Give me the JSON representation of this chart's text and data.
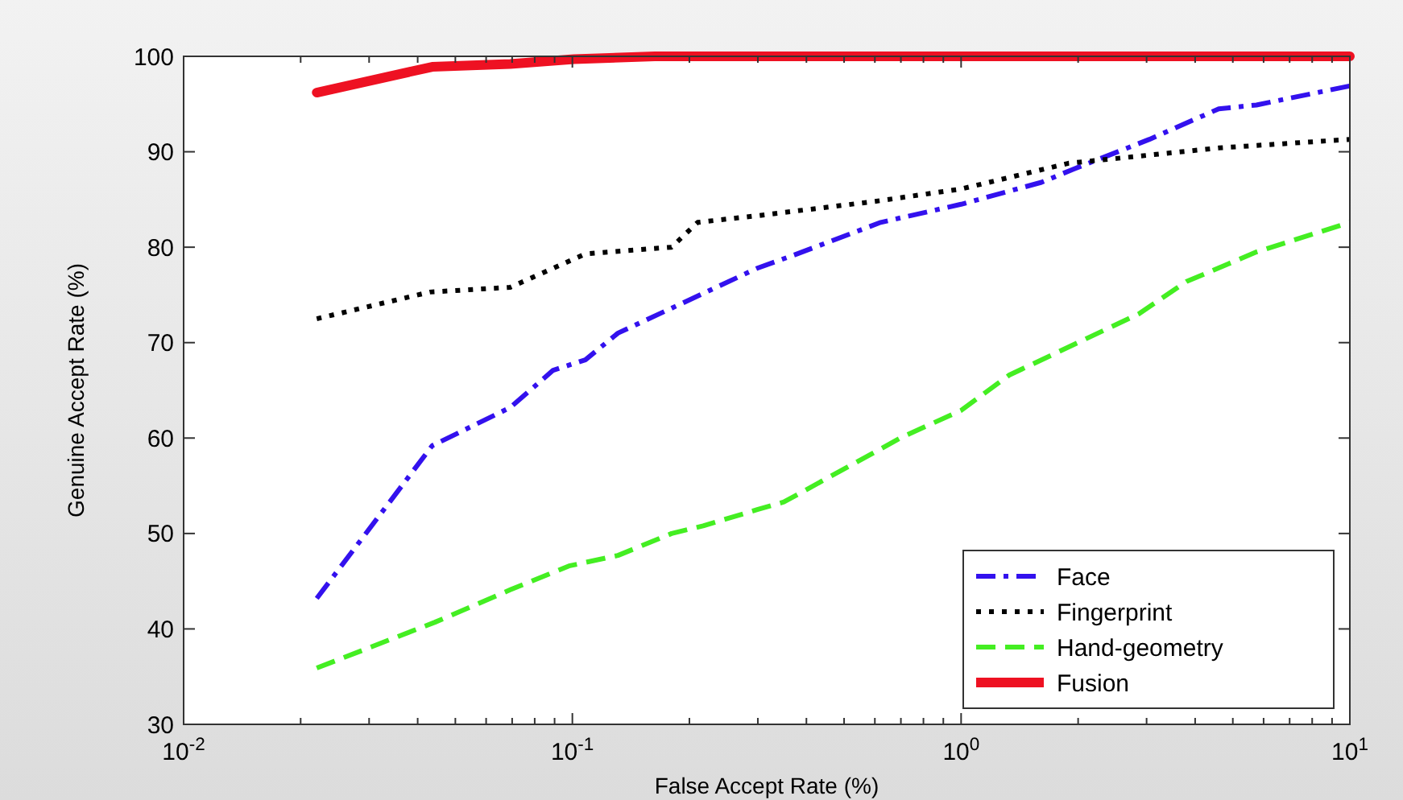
{
  "chart_data": {
    "type": "line",
    "xlabel": "False Accept Rate (%)",
    "ylabel": "Genuine Accept Rate (%)",
    "log": "x",
    "xlim": [
      0.01,
      10
    ],
    "ylim": [
      30,
      100
    ],
    "xticks": [
      {
        "value": 0.01,
        "label": "10$^{-2}$"
      },
      {
        "value": 0.02,
        "label": null
      },
      {
        "value": 0.03,
        "label": null
      },
      {
        "value": 0.04,
        "label": null
      },
      {
        "value": 0.05,
        "label": null
      },
      {
        "value": 0.06,
        "label": null
      },
      {
        "value": 0.07,
        "label": null
      },
      {
        "value": 0.08,
        "label": null
      },
      {
        "value": 0.09,
        "label": null
      },
      {
        "value": 0.1,
        "label": "10$^{-1}$"
      },
      {
        "value": 0.2,
        "label": null
      },
      {
        "value": 0.3,
        "label": null
      },
      {
        "value": 0.4,
        "label": null
      },
      {
        "value": 0.5,
        "label": null
      },
      {
        "value": 0.6,
        "label": null
      },
      {
        "value": 0.7,
        "label": null
      },
      {
        "value": 0.8,
        "label": null
      },
      {
        "value": 0.9,
        "label": null
      },
      {
        "value": 1,
        "label": "10$^{0}$"
      },
      {
        "value": 2,
        "label": null
      },
      {
        "value": 3,
        "label": null
      },
      {
        "value": 4,
        "label": null
      },
      {
        "value": 5,
        "label": null
      },
      {
        "value": 6,
        "label": null
      },
      {
        "value": 7,
        "label": null
      },
      {
        "value": 8,
        "label": null
      },
      {
        "value": 9,
        "label": null
      },
      {
        "value": 10,
        "label": "10$^{1}$"
      }
    ],
    "yticks": [
      30,
      40,
      50,
      60,
      70,
      80,
      90,
      100
    ],
    "grid": false,
    "legend": "bottom right",
    "series": [
      {
        "name": "Face",
        "color": "#3311ee",
        "line_style": "dashdot",
        "x": [
          0.022,
          0.0436,
          0.0692,
          0.0892,
          0.108,
          0.131,
          0.191,
          0.299,
          0.373,
          0.621,
          1.0,
          1.61,
          1.95,
          3.05,
          4.6,
          5.75,
          10
        ],
        "values": [
          43.2,
          59.2,
          63.2,
          67.1,
          68.2,
          71.0,
          74.1,
          77.8,
          79.2,
          82.6,
          84.5,
          86.8,
          88.2,
          91.3,
          94.5,
          94.9,
          96.9
        ]
      },
      {
        "name": "Fingerprint",
        "color": "#000000",
        "line_style": "dotted",
        "x": [
          0.022,
          0.043,
          0.0692,
          0.108,
          0.18,
          0.21,
          0.299,
          0.6,
          1.0,
          1.89,
          2.51,
          4.6,
          10
        ],
        "values": [
          72.5,
          75.3,
          75.8,
          79.3,
          80.0,
          82.6,
          83.3,
          84.8,
          86.1,
          88.8,
          89.3,
          90.4,
          91.3
        ]
      },
      {
        "name": "Hand-geometry",
        "color": "#44ee22",
        "line_style": "dashed",
        "x": [
          0.022,
          0.0443,
          0.0692,
          0.098,
          0.131,
          0.18,
          0.217,
          0.299,
          0.35,
          0.705,
          1.0,
          1.33,
          2.86,
          3.8,
          5.75,
          10
        ],
        "values": [
          35.9,
          40.7,
          44.1,
          46.6,
          47.7,
          50.0,
          50.8,
          52.5,
          53.3,
          60.1,
          62.9,
          66.6,
          73.0,
          76.4,
          79.5,
          82.6
        ]
      },
      {
        "name": "Fusion",
        "color": "#ee1122",
        "line_style": "solid",
        "x": [
          0.022,
          0.0436,
          0.0692,
          0.101,
          0.163,
          10
        ],
        "values": [
          96.2,
          98.9,
          99.2,
          99.7,
          100,
          100
        ]
      }
    ]
  }
}
